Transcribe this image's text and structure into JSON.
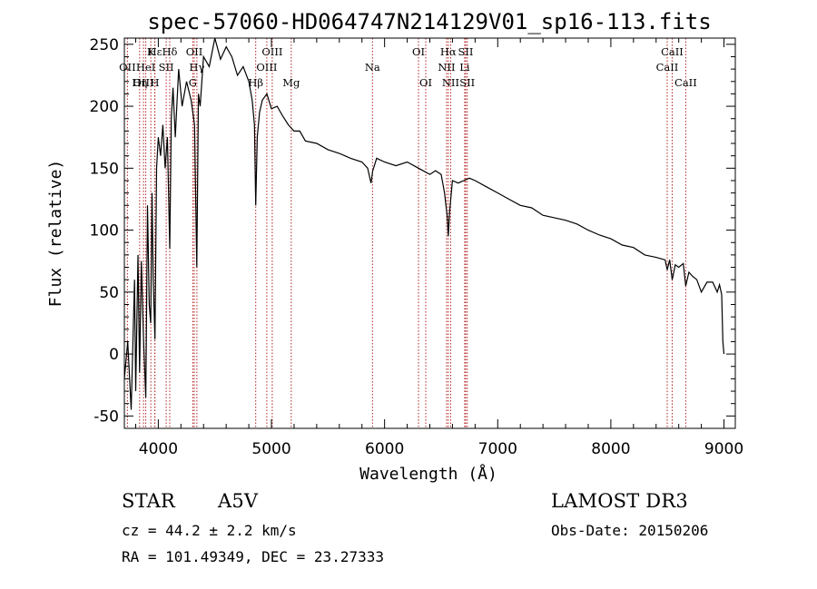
{
  "chart_data": {
    "type": "line",
    "title": "spec-57060-HD064747N214129V01_sp16-113.fits",
    "xlabel": "Wavelength (Å)",
    "ylabel": "Flux (relative)",
    "xlim": [
      3700,
      9100
    ],
    "ylim": [
      -60,
      255
    ],
    "xticks": [
      4000,
      5000,
      6000,
      7000,
      8000,
      9000
    ],
    "yticks": [
      -50,
      0,
      50,
      100,
      150,
      200,
      250
    ],
    "series": [
      {
        "name": "flux",
        "x": [
          3700,
          3730,
          3760,
          3790,
          3800,
          3820,
          3835,
          3850,
          3870,
          3889,
          3905,
          3920,
          3933,
          3945,
          3955,
          3970,
          3985,
          4000,
          4020,
          4040,
          4060,
          4080,
          4101,
          4115,
          4130,
          4150,
          4180,
          4210,
          4250,
          4290,
          4320,
          4340,
          4355,
          4370,
          4400,
          4450,
          4500,
          4550,
          4600,
          4650,
          4700,
          4750,
          4800,
          4830,
          4850,
          4861,
          4875,
          4895,
          4920,
          4960,
          5000,
          5050,
          5100,
          5150,
          5200,
          5250,
          5300,
          5400,
          5500,
          5600,
          5700,
          5800,
          5850,
          5880,
          5895,
          5910,
          5930,
          6000,
          6100,
          6200,
          6300,
          6400,
          6450,
          6500,
          6530,
          6555,
          6563,
          6575,
          6600,
          6650,
          6700,
          6750,
          6800,
          6900,
          7000,
          7100,
          7200,
          7300,
          7400,
          7500,
          7600,
          7700,
          7800,
          7900,
          8000,
          8100,
          8200,
          8300,
          8400,
          8480,
          8498,
          8520,
          8542,
          8570,
          8600,
          8640,
          8662,
          8690,
          8720,
          8760,
          8800,
          8850,
          8900,
          8940,
          8960,
          8980,
          8990,
          9000
        ],
        "y": [
          -20,
          10,
          -45,
          60,
          -30,
          80,
          -15,
          75,
          10,
          -35,
          120,
          40,
          25,
          130,
          60,
          12,
          150,
          175,
          160,
          185,
          150,
          175,
          85,
          190,
          215,
          175,
          230,
          200,
          220,
          205,
          185,
          70,
          210,
          200,
          240,
          232,
          255,
          238,
          248,
          240,
          225,
          232,
          220,
          205,
          185,
          120,
          175,
          195,
          205,
          210,
          198,
          200,
          192,
          185,
          180,
          180,
          172,
          170,
          165,
          162,
          158,
          155,
          150,
          138,
          148,
          152,
          158,
          155,
          152,
          155,
          150,
          145,
          148,
          145,
          130,
          110,
          95,
          115,
          140,
          138,
          140,
          142,
          140,
          135,
          130,
          125,
          120,
          118,
          112,
          110,
          108,
          105,
          100,
          96,
          93,
          88,
          86,
          80,
          78,
          76,
          68,
          76,
          60,
          72,
          70,
          73,
          55,
          66,
          63,
          60,
          50,
          58,
          58,
          50,
          56,
          48,
          10,
          0
        ]
      }
    ],
    "lines": [
      {
        "name": "Hε",
        "w": 3970,
        "row": 1
      },
      {
        "name": "K",
        "w": 3934,
        "row": 1
      },
      {
        "name": "Hδ",
        "w": 4101,
        "row": 1
      },
      {
        "name": "OII",
        "w": 3727,
        "row": 2
      },
      {
        "name": "HeI",
        "w": 3889,
        "row": 2
      },
      {
        "name": "SII",
        "w": 4070,
        "row": 2
      },
      {
        "name": "OIII",
        "w": 3869,
        "row": 3
      },
      {
        "name": "Hη",
        "w": 3835,
        "row": 3
      },
      {
        "name": "H",
        "w": 3969,
        "row": 3
      },
      {
        "name": "OII",
        "w": 4318,
        "row": 1
      },
      {
        "name": "Hγ",
        "w": 4341,
        "row": 2
      },
      {
        "name": "G",
        "w": 4305,
        "row": 3
      },
      {
        "name": "OIII",
        "w": 5007,
        "row": 1
      },
      {
        "name": "OIII",
        "w": 4959,
        "row": 2
      },
      {
        "name": "Hβ",
        "w": 4861,
        "row": 3
      },
      {
        "name": "Mg",
        "w": 5175,
        "row": 3
      },
      {
        "name": "Na",
        "w": 5893,
        "row": 2
      },
      {
        "name": "OI",
        "w": 6300,
        "row": 1
      },
      {
        "name": "OI",
        "w": 6364,
        "row": 3
      },
      {
        "name": "Hα",
        "w": 6563,
        "row": 1
      },
      {
        "name": "SII",
        "w": 6717,
        "row": 1
      },
      {
        "name": "NII",
        "w": 6548,
        "row": 2
      },
      {
        "name": "Li",
        "w": 6708,
        "row": 2
      },
      {
        "name": "NII",
        "w": 6584,
        "row": 3
      },
      {
        "name": "SII",
        "w": 6731,
        "row": 3
      },
      {
        "name": "CaII",
        "w": 8542,
        "row": 1
      },
      {
        "name": "CaII",
        "w": 8498,
        "row": 2
      },
      {
        "name": "CaII",
        "w": 8662,
        "row": 3
      }
    ],
    "line_color": "#b22222",
    "spectrum_color": "#000000"
  },
  "info": {
    "object_type": "STAR",
    "subclass": "A5V",
    "survey": "LAMOST DR3",
    "redshift": "cz = 44.2 ± 2.2 km/s",
    "obs_date": "Obs-Date: 20150206",
    "coords": "RA = 101.49349, DEC =  23.27333"
  }
}
